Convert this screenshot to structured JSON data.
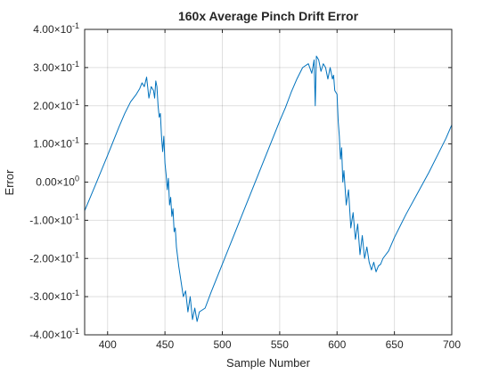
{
  "chart_data": {
    "type": "line",
    "title": "160x Average Pinch Drift Error",
    "xlabel": "Sample Number",
    "ylabel": "Error",
    "xlim": [
      380,
      700
    ],
    "ylim": [
      -0.4,
      0.4
    ],
    "grid": true,
    "x_ticks": [
      {
        "value": 400,
        "label": "400"
      },
      {
        "value": 450,
        "label": "450"
      },
      {
        "value": 500,
        "label": "500"
      },
      {
        "value": 550,
        "label": "550"
      },
      {
        "value": 600,
        "label": "600"
      },
      {
        "value": 650,
        "label": "650"
      },
      {
        "value": 700,
        "label": "700"
      }
    ],
    "y_ticks": [
      {
        "value": 0.4,
        "mantissa": "4.00",
        "times": "×10",
        "exp": "-1"
      },
      {
        "value": 0.3,
        "mantissa": "3.00",
        "times": "×10",
        "exp": "-1"
      },
      {
        "value": 0.2,
        "mantissa": "2.00",
        "times": "×10",
        "exp": "-1"
      },
      {
        "value": 0.1,
        "mantissa": "1.00",
        "times": "×10",
        "exp": "-1"
      },
      {
        "value": 0.0,
        "mantissa": "0.00",
        "times": "×10",
        "exp": "0"
      },
      {
        "value": -0.1,
        "mantissa": "-1.00",
        "times": "×10",
        "exp": "-1"
      },
      {
        "value": -0.2,
        "mantissa": "-2.00",
        "times": "×10",
        "exp": "-1"
      },
      {
        "value": -0.3,
        "mantissa": "-3.00",
        "times": "×10",
        "exp": "-1"
      },
      {
        "value": -0.4,
        "mantissa": "-4.00",
        "times": "×10",
        "exp": "-1"
      }
    ],
    "series": [
      {
        "color": "#0072bd",
        "x": [
          380,
          390,
          400,
          410,
          415,
          420,
          425,
          428,
          430,
          432,
          434,
          436,
          438,
          440,
          441,
          442,
          443,
          444,
          445,
          446,
          447,
          448,
          449,
          450,
          451,
          452,
          453,
          454,
          455,
          456,
          457,
          458,
          459,
          460,
          462,
          464,
          466,
          468,
          470,
          472,
          474,
          476,
          478,
          480,
          485,
          490,
          500,
          510,
          520,
          530,
          540,
          550,
          555,
          560,
          565,
          570,
          575,
          578,
          580,
          581,
          582,
          584,
          586,
          588,
          590,
          592,
          594,
          596,
          597,
          598,
          600,
          601,
          602,
          603,
          604,
          605,
          606,
          608,
          610,
          612,
          614,
          616,
          618,
          620,
          622,
          624,
          626,
          628,
          630,
          632,
          634,
          636,
          638,
          640,
          645,
          650,
          660,
          670,
          680,
          690,
          695,
          700
        ],
        "y": [
          -0.075,
          -0.003,
          0.07,
          0.145,
          0.18,
          0.21,
          0.23,
          0.245,
          0.26,
          0.25,
          0.275,
          0.22,
          0.25,
          0.24,
          0.22,
          0.265,
          0.25,
          0.2,
          0.17,
          0.18,
          0.12,
          0.08,
          0.12,
          0.05,
          0.02,
          -0.02,
          0.01,
          -0.06,
          -0.04,
          -0.09,
          -0.07,
          -0.13,
          -0.12,
          -0.17,
          -0.22,
          -0.26,
          -0.3,
          -0.285,
          -0.34,
          -0.3,
          -0.36,
          -0.33,
          -0.365,
          -0.34,
          -0.33,
          -0.29,
          -0.215,
          -0.14,
          -0.065,
          0.01,
          0.085,
          0.16,
          0.195,
          0.235,
          0.27,
          0.3,
          0.31,
          0.285,
          0.32,
          0.2,
          0.33,
          0.32,
          0.29,
          0.31,
          0.3,
          0.27,
          0.3,
          0.27,
          0.28,
          0.24,
          0.23,
          0.16,
          0.12,
          0.06,
          0.09,
          0.0,
          0.03,
          -0.06,
          -0.02,
          -0.12,
          -0.08,
          -0.15,
          -0.11,
          -0.19,
          -0.14,
          -0.2,
          -0.17,
          -0.21,
          -0.23,
          -0.21,
          -0.235,
          -0.22,
          -0.215,
          -0.2,
          -0.18,
          -0.145,
          -0.085,
          -0.03,
          0.025,
          0.085,
          0.115,
          0.15
        ]
      }
    ]
  }
}
